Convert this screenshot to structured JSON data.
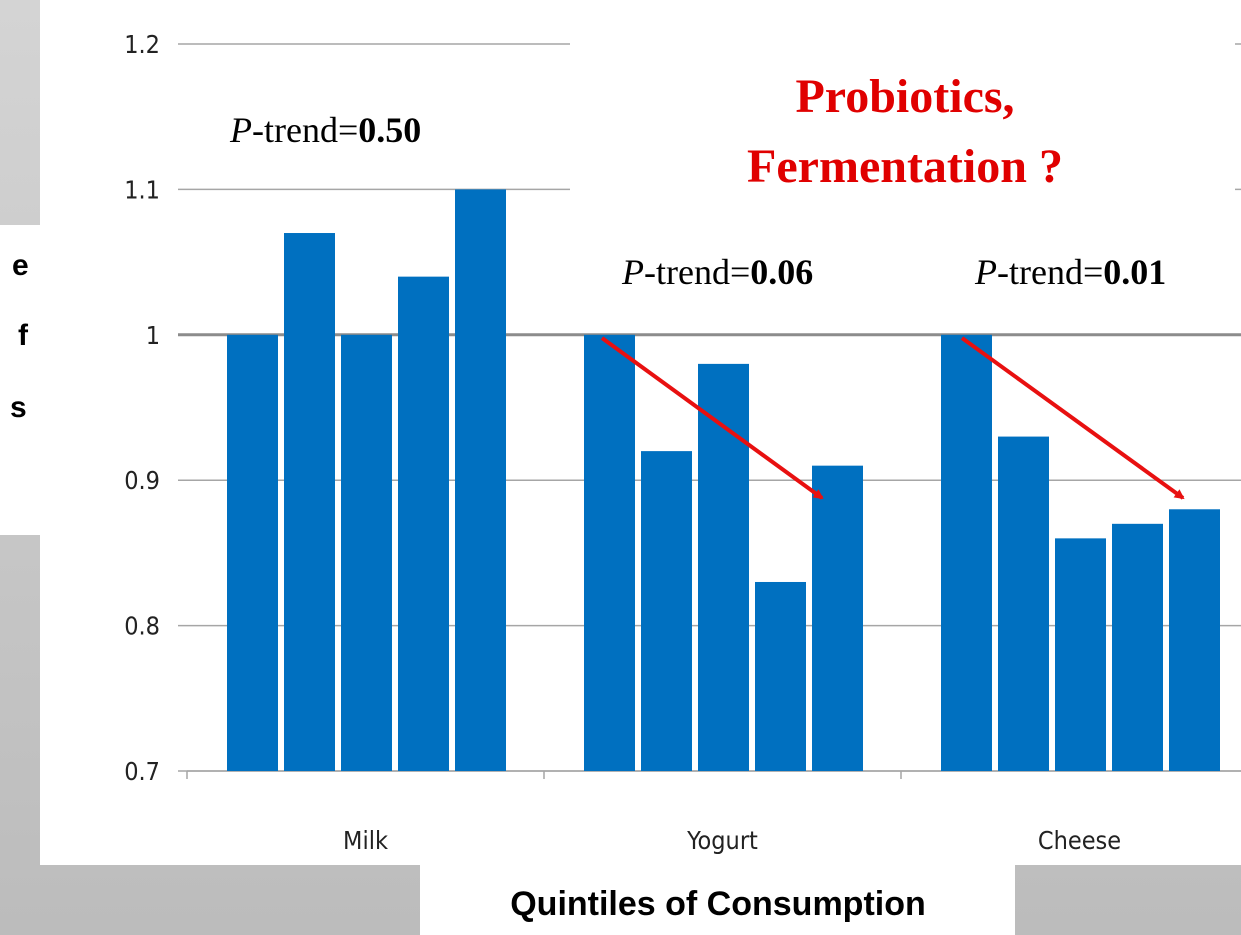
{
  "chart_data": {
    "type": "bar",
    "title": [
      "Probiotics,",
      "Fermentation ?"
    ],
    "x_label": "Quintiles of Consumption",
    "y_label_fragments": [
      "e",
      "f",
      "s"
    ],
    "categories": [
      "Milk",
      "Yogurt",
      "Cheese"
    ],
    "series": [
      {
        "color": "#0070c0",
        "values": [
          1.0,
          1.0,
          1.0
        ]
      },
      {
        "color": "#0070c0",
        "values": [
          1.07,
          0.92,
          0.93
        ]
      },
      {
        "color": "#0070c0",
        "values": [
          1.0,
          0.98,
          0.86
        ]
      },
      {
        "color": "#0070c0",
        "values": [
          1.04,
          0.83,
          0.87
        ]
      },
      {
        "color": "#0070c0",
        "values": [
          1.1,
          0.91,
          0.88
        ]
      }
    ],
    "ylim": [
      0.7,
      1.2
    ],
    "yticks": [
      0.7,
      0.8,
      0.9,
      1,
      1.1,
      1.2
    ],
    "grid": true,
    "annotations": [
      {
        "italic": "P",
        "text": "-trend=",
        "bold": "0.50"
      },
      {
        "italic": "P",
        "text": "-trend=",
        "bold": "0.06"
      },
      {
        "italic": "P",
        "text": "-trend=",
        "bold": "0.01"
      }
    ]
  }
}
